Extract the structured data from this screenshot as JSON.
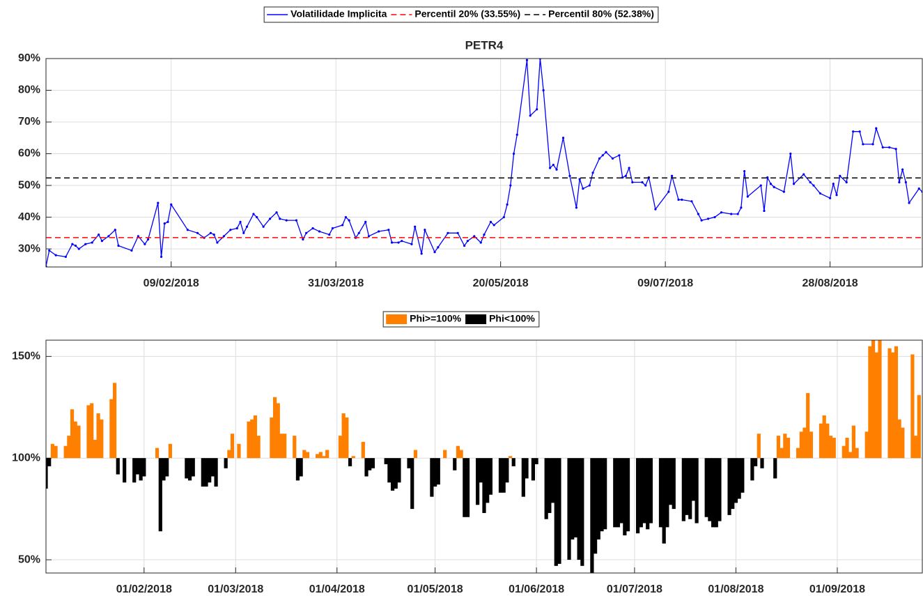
{
  "chart_data": [
    {
      "type": "line",
      "title": "PETR4",
      "x": [
        "2018-01-02",
        "2018-01-03",
        "2018-01-05",
        "2018-01-08",
        "2018-01-10",
        "2018-01-11",
        "2018-01-12",
        "2018-01-14",
        "2018-01-16",
        "2018-01-18",
        "2018-01-19",
        "2018-01-21",
        "2018-01-23",
        "2018-01-24",
        "2018-01-28",
        "2018-01-30",
        "2018-02-01",
        "2018-02-02",
        "2018-02-05",
        "2018-02-06",
        "2018-02-07",
        "2018-02-08",
        "2018-02-09",
        "2018-02-14",
        "2018-02-17",
        "2018-02-19",
        "2018-02-21",
        "2018-02-22",
        "2018-02-23",
        "2018-02-25",
        "2018-02-27",
        "2018-03-01",
        "2018-03-02",
        "2018-03-03",
        "2018-03-04",
        "2018-03-06",
        "2018-03-07",
        "2018-03-09",
        "2018-03-11",
        "2018-03-13",
        "2018-03-14",
        "2018-03-16",
        "2018-03-19",
        "2018-03-21",
        "2018-03-22",
        "2018-03-24",
        "2018-03-26",
        "2018-03-29",
        "2018-03-30",
        "2018-04-02",
        "2018-04-03",
        "2018-04-04",
        "2018-04-06",
        "2018-04-07",
        "2018-04-09",
        "2018-04-10",
        "2018-04-13",
        "2018-04-16",
        "2018-04-17",
        "2018-04-19",
        "2018-04-20",
        "2018-04-23",
        "2018-04-24",
        "2018-04-26",
        "2018-04-27",
        "2018-04-30",
        "2018-05-01",
        "2018-05-04",
        "2018-05-07",
        "2018-05-09",
        "2018-05-10",
        "2018-05-12",
        "2018-05-14",
        "2018-05-15",
        "2018-05-17",
        "2018-05-18",
        "2018-05-21",
        "2018-05-22",
        "2018-05-23",
        "2018-05-24",
        "2018-05-25",
        "2018-05-28",
        "2018-05-29",
        "2018-05-31",
        "2018-06-01",
        "2018-06-02",
        "2018-06-04",
        "2018-06-05",
        "2018-06-06",
        "2018-06-08",
        "2018-06-10",
        "2018-06-12",
        "2018-06-13",
        "2018-06-14",
        "2018-06-16",
        "2018-06-17",
        "2018-06-19",
        "2018-06-20",
        "2018-06-21",
        "2018-06-23",
        "2018-06-25",
        "2018-06-26",
        "2018-06-27",
        "2018-06-28",
        "2018-06-29",
        "2018-07-02",
        "2018-07-03",
        "2018-07-04",
        "2018-07-06",
        "2018-07-10",
        "2018-07-11",
        "2018-07-13",
        "2018-07-14",
        "2018-07-17",
        "2018-07-19",
        "2018-07-20",
        "2018-07-22",
        "2018-07-24",
        "2018-07-26",
        "2018-07-29",
        "2018-07-31",
        "2018-08-01",
        "2018-08-02",
        "2018-08-03",
        "2018-08-07",
        "2018-08-08",
        "2018-08-09",
        "2018-08-10",
        "2018-08-11",
        "2018-08-14",
        "2018-08-16",
        "2018-08-17",
        "2018-08-20",
        "2018-08-22",
        "2018-08-23",
        "2018-08-25",
        "2018-08-28",
        "2018-08-29",
        "2018-08-30",
        "2018-08-31",
        "2018-09-02",
        "2018-09-04",
        "2018-09-06",
        "2018-09-07",
        "2018-09-10",
        "2018-09-11",
        "2018-09-13",
        "2018-09-15",
        "2018-09-17",
        "2018-09-18",
        "2018-09-19",
        "2018-09-20",
        "2018-09-21",
        "2018-09-24",
        "2018-09-25"
      ],
      "series": [
        {
          "name": "Volatilidade Implicita",
          "color": "#0000ff",
          "values": [
            24.5,
            29.5,
            28,
            27.5,
            31.5,
            31,
            30,
            31.5,
            32,
            34.5,
            32.5,
            34,
            36,
            31,
            29.5,
            34,
            31.5,
            33,
            44.5,
            27.5,
            38,
            38.5,
            44,
            36,
            35,
            33.5,
            35,
            34.5,
            32,
            34,
            36,
            36.5,
            38.5,
            35,
            37,
            41,
            40,
            37,
            39.5,
            41.5,
            39.5,
            39,
            39,
            33,
            35,
            36.5,
            35.5,
            34.5,
            36.5,
            37.5,
            40,
            39,
            33.5,
            35,
            38.5,
            34,
            35.5,
            36,
            32,
            32,
            32.5,
            31.5,
            37,
            28.5,
            36,
            29,
            30.5,
            35,
            35,
            31,
            32.5,
            34,
            32,
            34.5,
            38.5,
            37.5,
            40,
            44,
            50,
            60,
            66,
            89.5,
            72,
            74,
            90,
            80,
            55.5,
            56.5,
            55,
            65,
            53,
            43,
            52,
            49,
            50,
            54,
            58.5,
            59.5,
            60.5,
            58.5,
            59.5,
            52.5,
            53,
            55.5,
            51,
            51,
            50,
            52.5,
            42.5,
            48,
            53,
            45.5,
            45.5,
            45,
            41,
            39,
            39.5,
            40,
            41.5,
            41,
            41,
            43,
            54.5,
            46.5,
            50,
            42,
            52.5,
            50.5,
            49.5,
            48,
            60,
            50.5,
            53.5,
            51,
            50,
            47.5,
            46,
            50.5,
            47,
            53,
            51,
            67,
            67,
            63,
            63,
            68,
            62,
            62,
            61.5,
            51,
            55,
            51,
            44.5,
            49,
            48
          ]
        }
      ],
      "reference_lines": [
        {
          "name": "Percentil 20% (33.55%)",
          "value": 33.55,
          "color": "#ff0000"
        },
        {
          "name": "Percentil 80% (52.38%)",
          "value": 52.38,
          "color": "#000000"
        }
      ],
      "xlim": [
        "2018-01-02",
        "2018-09-25"
      ],
      "xticks": [
        {
          "value": "2018-02-09",
          "label": "09/02/2018"
        },
        {
          "value": "2018-03-31",
          "label": "31/03/2018"
        },
        {
          "value": "2018-05-20",
          "label": "20/05/2018"
        },
        {
          "value": "2018-07-09",
          "label": "09/07/2018"
        },
        {
          "value": "2018-08-28",
          "label": "28/08/2018"
        }
      ],
      "ylim": [
        24.3,
        90
      ],
      "yticks": [
        {
          "value": 30,
          "label": "30%"
        },
        {
          "value": 40,
          "label": "40%"
        },
        {
          "value": 50,
          "label": "50%"
        },
        {
          "value": 60,
          "label": "60%"
        },
        {
          "value": 70,
          "label": "70%"
        },
        {
          "value": 80,
          "label": "80%"
        },
        {
          "value": 90,
          "label": "90%"
        }
      ],
      "grid": true,
      "markers": true
    },
    {
      "type": "bar",
      "base": 100,
      "series": [
        {
          "name": "Phi>=100%",
          "color": "#ff8000",
          "x": [
            "2018-01-04",
            "2018-01-05",
            "2018-01-08",
            "2018-01-09",
            "2018-01-10",
            "2018-01-11",
            "2018-01-12",
            "2018-01-15",
            "2018-01-16",
            "2018-01-17",
            "2018-01-18",
            "2018-01-19",
            "2018-01-22",
            "2018-01-23",
            "2018-02-05",
            "2018-02-09",
            "2018-02-27",
            "2018-02-28",
            "2018-03-02",
            "2018-03-05",
            "2018-03-06",
            "2018-03-07",
            "2018-03-08",
            "2018-03-12",
            "2018-03-13",
            "2018-03-14",
            "2018-03-15",
            "2018-03-16",
            "2018-03-19",
            "2018-03-22",
            "2018-03-23",
            "2018-03-26",
            "2018-03-27",
            "2018-03-28",
            "2018-03-29",
            "2018-04-02",
            "2018-04-03",
            "2018-04-04",
            "2018-04-06",
            "2018-04-09",
            "2018-04-25",
            "2018-05-04",
            "2018-05-08",
            "2018-05-09",
            "2018-05-24",
            "2018-08-08",
            "2018-08-14",
            "2018-08-15",
            "2018-08-16",
            "2018-08-17",
            "2018-08-20",
            "2018-08-21",
            "2018-08-22",
            "2018-08-23",
            "2018-08-24",
            "2018-08-27",
            "2018-08-28",
            "2018-08-29",
            "2018-08-30",
            "2018-08-31",
            "2018-09-03",
            "2018-09-04",
            "2018-09-05",
            "2018-09-06",
            "2018-09-07",
            "2018-09-10",
            "2018-09-11",
            "2018-09-12",
            "2018-09-13",
            "2018-09-14",
            "2018-09-17",
            "2018-09-18",
            "2018-09-19",
            "2018-09-20",
            "2018-09-21",
            "2018-09-24",
            "2018-09-25",
            "2018-09-26"
          ],
          "values": [
            107,
            106,
            106,
            111,
            124,
            118,
            116,
            126,
            127,
            109,
            122,
            119,
            129,
            137,
            105,
            107,
            104,
            112,
            107,
            118,
            119,
            121,
            111,
            120,
            130,
            127,
            112,
            112,
            111,
            104,
            103,
            102,
            103,
            101,
            104,
            111,
            122,
            120,
            101,
            108,
            104,
            104,
            106,
            104,
            101,
            112,
            111,
            105,
            112,
            110,
            105,
            113,
            115,
            132,
            113,
            117,
            121,
            117,
            111,
            110,
            106,
            110,
            103,
            116,
            105,
            113,
            155,
            158,
            152,
            158,
            154,
            152,
            155,
            119,
            115,
            151,
            111,
            131
          ]
        },
        {
          "name": "Phi<100%",
          "color": "#000000",
          "x": [
            "2018-01-02",
            "2018-01-03",
            "2018-01-24",
            "2018-01-26",
            "2018-01-29",
            "2018-01-30",
            "2018-01-31",
            "2018-02-01",
            "2018-02-06",
            "2018-02-07",
            "2018-02-08",
            "2018-02-14",
            "2018-02-15",
            "2018-02-16",
            "2018-02-19",
            "2018-02-20",
            "2018-02-21",
            "2018-02-22",
            "2018-02-23",
            "2018-02-26",
            "2018-03-20",
            "2018-03-21",
            "2018-04-05",
            "2018-04-10",
            "2018-04-11",
            "2018-04-12",
            "2018-04-16",
            "2018-04-17",
            "2018-04-18",
            "2018-04-19",
            "2018-04-20",
            "2018-04-23",
            "2018-04-24",
            "2018-04-30",
            "2018-05-01",
            "2018-05-02",
            "2018-05-07",
            "2018-05-10",
            "2018-05-11",
            "2018-05-14",
            "2018-05-15",
            "2018-05-16",
            "2018-05-17",
            "2018-05-18",
            "2018-05-21",
            "2018-05-22",
            "2018-05-23",
            "2018-05-25",
            "2018-05-28",
            "2018-05-29",
            "2018-05-31",
            "2018-06-01",
            "2018-06-04",
            "2018-06-05",
            "2018-06-06",
            "2018-06-07",
            "2018-06-08",
            "2018-06-11",
            "2018-06-12",
            "2018-06-13",
            "2018-06-14",
            "2018-06-15",
            "2018-06-18",
            "2018-06-19",
            "2018-06-20",
            "2018-06-21",
            "2018-06-22",
            "2018-06-25",
            "2018-06-26",
            "2018-06-27",
            "2018-06-28",
            "2018-06-29",
            "2018-07-02",
            "2018-07-03",
            "2018-07-04",
            "2018-07-05",
            "2018-07-06",
            "2018-07-09",
            "2018-07-10",
            "2018-07-11",
            "2018-07-12",
            "2018-07-13",
            "2018-07-16",
            "2018-07-17",
            "2018-07-18",
            "2018-07-19",
            "2018-07-20",
            "2018-07-23",
            "2018-07-24",
            "2018-07-25",
            "2018-07-26",
            "2018-07-27",
            "2018-07-30",
            "2018-07-31",
            "2018-08-01",
            "2018-08-02",
            "2018-08-03",
            "2018-08-06",
            "2018-08-07",
            "2018-08-09",
            "2018-08-13"
          ],
          "values": [
            85,
            96,
            92,
            88,
            88,
            92,
            89,
            91,
            64,
            89,
            91,
            90,
            89,
            91,
            86,
            86,
            88,
            91,
            86,
            95,
            89,
            91,
            96,
            91,
            94,
            95,
            97,
            88,
            84,
            85,
            88,
            95,
            75,
            81,
            86,
            87,
            94,
            71,
            71,
            77,
            88,
            73,
            78,
            82,
            83,
            83,
            88,
            96,
            81,
            90,
            89,
            97,
            70,
            73,
            78,
            47,
            48,
            50,
            60,
            61,
            50,
            47,
            43,
            53,
            60,
            64,
            65,
            66,
            66,
            68,
            62,
            64,
            63,
            66,
            68,
            65,
            68,
            66,
            58,
            66,
            77,
            75,
            69,
            72,
            70,
            79,
            68,
            71,
            69,
            66,
            66,
            69,
            72,
            75,
            78,
            80,
            83,
            89,
            96,
            95,
            90
          ]
        }
      ],
      "xlim": [
        "2018-01-02",
        "2018-09-27"
      ],
      "xticks": [
        {
          "value": "2018-02-01",
          "label": "01/02/2018"
        },
        {
          "value": "2018-03-01",
          "label": "01/03/2018"
        },
        {
          "value": "2018-04-01",
          "label": "01/04/2018"
        },
        {
          "value": "2018-05-01",
          "label": "01/05/2018"
        },
        {
          "value": "2018-06-01",
          "label": "01/06/2018"
        },
        {
          "value": "2018-07-01",
          "label": "01/07/2018"
        },
        {
          "value": "2018-08-01",
          "label": "01/08/2018"
        },
        {
          "value": "2018-09-01",
          "label": "01/09/2018"
        }
      ],
      "ylim": [
        43.5,
        158
      ],
      "yticks": [
        {
          "value": 50,
          "label": "50%"
        },
        {
          "value": 100,
          "label": "100%"
        },
        {
          "value": 150,
          "label": "150%"
        }
      ],
      "grid": true
    }
  ]
}
